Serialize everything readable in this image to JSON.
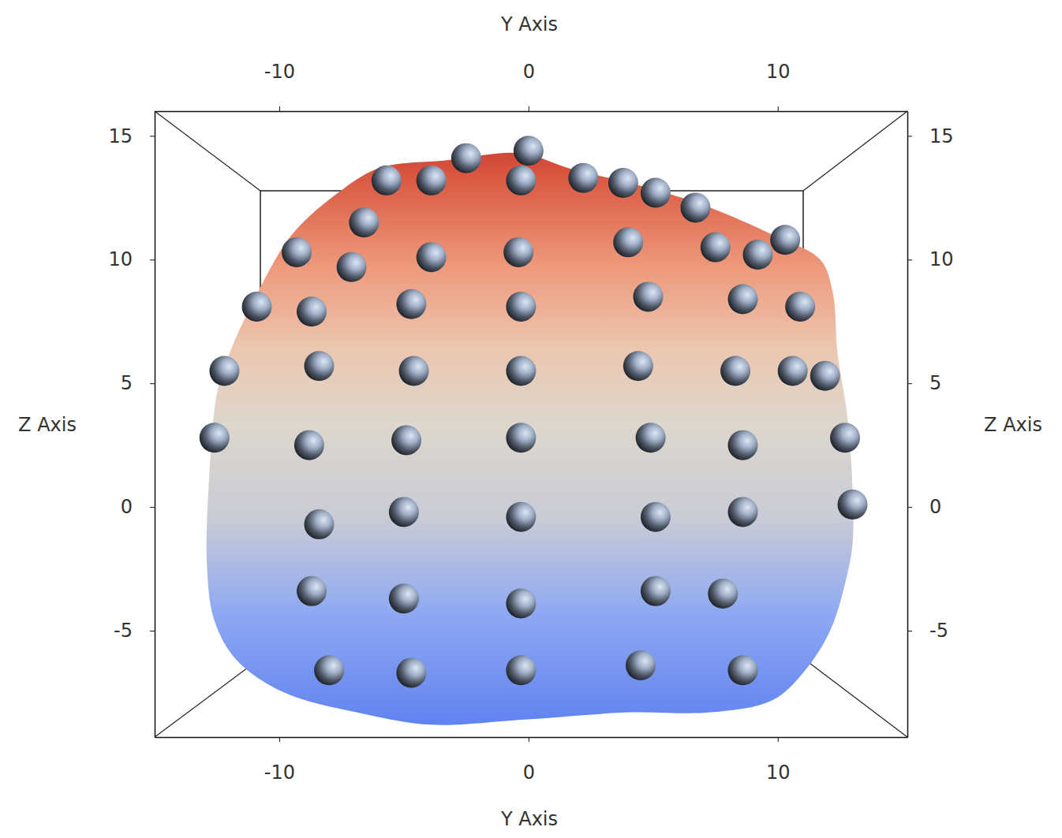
{
  "chart_data": {
    "type": "scatter",
    "x_label": "Y Axis",
    "y_label": "Z Axis",
    "xlim": [
      -15,
      15.2
    ],
    "ylim": [
      -9.3,
      16
    ],
    "xticks": [
      -10,
      0,
      10
    ],
    "yticks": [
      -5,
      0,
      5,
      10,
      15
    ],
    "series": [
      {
        "type": "area",
        "x": [
          -12,
          -10.7,
          -9.5,
          -7.9,
          -6,
          -3.4,
          -0.3,
          1.6,
          4.8,
          7.3,
          9.8,
          11.7,
          12.2,
          12.4,
          12.8,
          13.0,
          13.0,
          12.7,
          12.1,
          11.1,
          9.8,
          7.3,
          4.1,
          -0.3,
          -3.9,
          -6.9,
          -9.8,
          -11.7,
          -12.6,
          -12.9,
          -12.8,
          -12.5
        ],
        "values": [
          6.2,
          9.0,
          11,
          12.5,
          13.7,
          14.0,
          14.3,
          13.7,
          12.9,
          12.1,
          11,
          10.0,
          8.7,
          6.2,
          3.6,
          0.8,
          -1.5,
          -3.1,
          -5.0,
          -6.6,
          -7.8,
          -8.3,
          -8.3,
          -8.6,
          -8.8,
          -8.3,
          -7.5,
          -6.2,
          -4.6,
          -2.4,
          1.4,
          4.6
        ]
      },
      {
        "type": "scatter",
        "marker": "sphere",
        "x": [
          -5.7,
          -2.5,
          0,
          -3.9,
          -0.3,
          2.2,
          3.8,
          5.1,
          6.7,
          10.3,
          -6.6,
          -9.3,
          -7.1,
          -3.9,
          -0.4,
          4.0,
          7.5,
          9.2,
          -10.9,
          -8.7,
          -4.7,
          -0.3,
          4.8,
          8.6,
          10.9,
          -12.2,
          -8.4,
          -4.6,
          -0.3,
          4.4,
          8.3,
          10.6,
          11.9,
          -12.6,
          -8.8,
          -4.9,
          -0.3,
          4.9,
          8.6,
          12.7,
          -8.4,
          -5.0,
          -0.3,
          5.1,
          8.6,
          13.0,
          -8.7,
          -5.0,
          -0.3,
          5.1,
          7.8,
          -8.0,
          -4.7,
          -0.3,
          4.5,
          8.6
        ],
        "values": [
          13.2,
          14.1,
          14.4,
          13.2,
          13.2,
          13.3,
          13.1,
          12.7,
          12.1,
          10.8,
          11.5,
          10.3,
          9.7,
          10.1,
          10.3,
          10.7,
          10.5,
          10.2,
          8.1,
          7.9,
          8.2,
          8.1,
          8.5,
          8.4,
          8.1,
          5.5,
          5.7,
          5.5,
          5.5,
          5.7,
          5.5,
          5.5,
          5.3,
          2.8,
          2.5,
          2.7,
          2.8,
          2.8,
          2.5,
          2.8,
          -0.7,
          -0.2,
          -0.4,
          -0.4,
          -0.2,
          0.1,
          -3.4,
          -3.7,
          -3.9,
          -3.4,
          -3.5,
          -6.6,
          -6.7,
          -6.6,
          -6.4,
          -6.6
        ]
      }
    ]
  }
}
